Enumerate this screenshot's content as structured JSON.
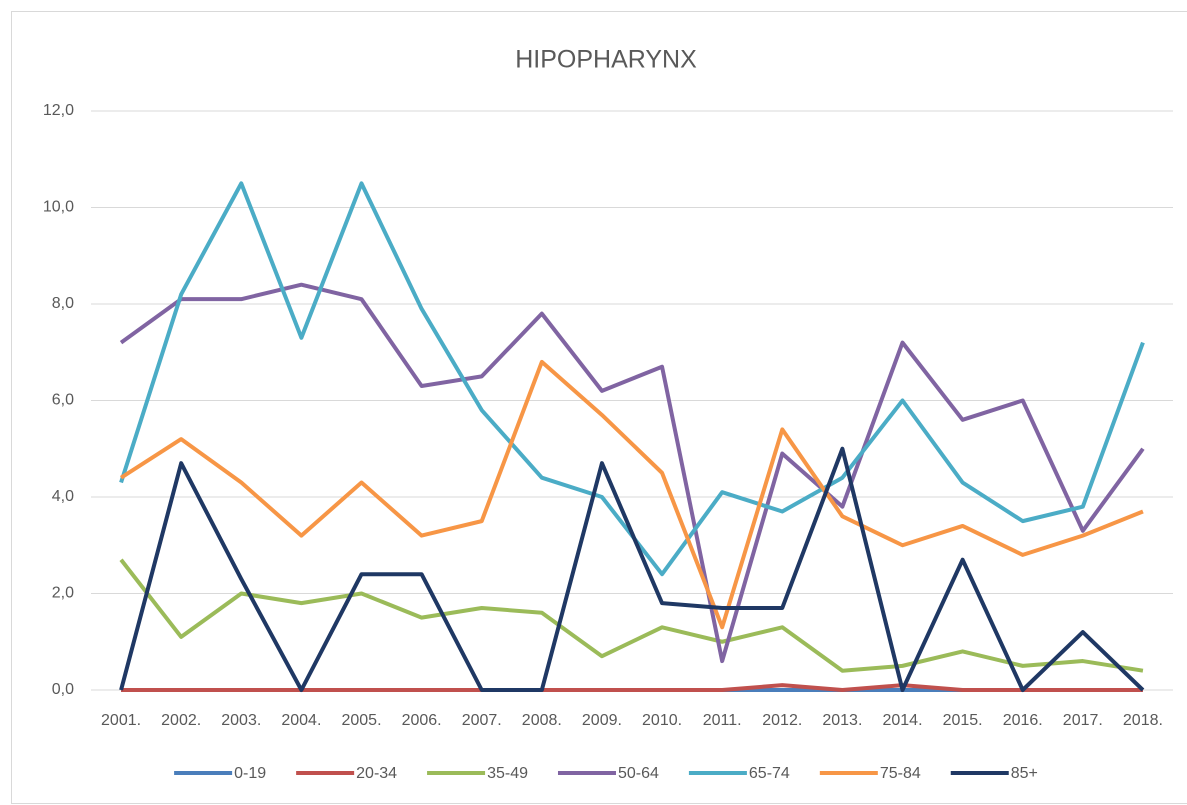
{
  "chart_data": {
    "type": "line",
    "title": "HIPOPHARYNX",
    "categories": [
      "2001.",
      "2002.",
      "2003.",
      "2004.",
      "2005.",
      "2006.",
      "2007.",
      "2008.",
      "2009.",
      "2010.",
      "2011.",
      "2012.",
      "2013.",
      "2014.",
      "2015.",
      "2016.",
      "2017.",
      "2018."
    ],
    "series": [
      {
        "name": "0-19",
        "color": "#4a7ebb",
        "values": [
          0,
          0,
          0,
          0,
          0,
          0,
          0,
          0,
          0,
          0,
          0,
          0,
          0,
          0,
          0,
          0,
          0,
          0
        ]
      },
      {
        "name": "20-34",
        "color": "#c0504d",
        "values": [
          0,
          0,
          0,
          0,
          0,
          0,
          0,
          0,
          0,
          0,
          0,
          0.1,
          0,
          0.1,
          0,
          0,
          0,
          0
        ]
      },
      {
        "name": "35-49",
        "color": "#9bbb59",
        "values": [
          2.7,
          1.1,
          2.0,
          1.8,
          2.0,
          1.5,
          1.7,
          1.6,
          0.7,
          1.3,
          1.0,
          1.3,
          0.4,
          0.5,
          0.8,
          0.5,
          0.6,
          0.4
        ]
      },
      {
        "name": "50-64",
        "color": "#8064a2",
        "values": [
          7.2,
          8.1,
          8.1,
          8.4,
          8.1,
          6.3,
          6.5,
          7.8,
          6.2,
          6.7,
          0.6,
          4.9,
          3.8,
          7.2,
          5.6,
          6.0,
          3.3,
          5.0
        ]
      },
      {
        "name": "65-74",
        "color": "#4bacc6",
        "values": [
          4.3,
          8.2,
          10.5,
          7.3,
          10.5,
          7.9,
          5.8,
          4.4,
          4.0,
          2.4,
          4.1,
          3.7,
          4.4,
          6.0,
          4.3,
          3.5,
          3.8,
          7.2
        ]
      },
      {
        "name": "75-84",
        "color": "#f79646",
        "values": [
          4.4,
          5.2,
          4.3,
          3.2,
          4.3,
          3.2,
          3.5,
          6.8,
          5.7,
          4.5,
          1.3,
          5.4,
          3.6,
          3.0,
          3.4,
          2.8,
          3.2,
          3.7
        ]
      },
      {
        "name": "85+",
        "color": "#1f3864",
        "values": [
          0,
          4.7,
          2.3,
          0,
          2.4,
          2.4,
          0,
          0,
          4.7,
          1.8,
          1.7,
          1.7,
          5.0,
          0,
          2.7,
          0,
          1.2,
          0
        ]
      }
    ],
    "ylim": [
      0,
      12
    ],
    "yticks": [
      {
        "value": 0,
        "label": "0,0"
      },
      {
        "value": 2,
        "label": "2,0"
      },
      {
        "value": 4,
        "label": "4,0"
      },
      {
        "value": 6,
        "label": "6,0"
      },
      {
        "value": 8,
        "label": "8,0"
      },
      {
        "value": 10,
        "label": "10,0"
      },
      {
        "value": 12,
        "label": "12,0"
      }
    ],
    "grid": true,
    "legend": "bottom"
  }
}
